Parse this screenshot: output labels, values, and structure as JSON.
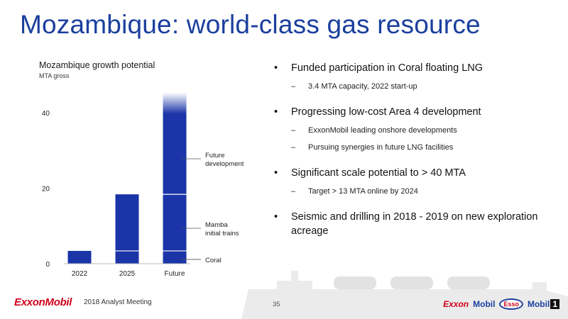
{
  "slide": {
    "title": "Mozambique: world-class gas resource",
    "page_number": "35"
  },
  "footer": {
    "logo_text": "ExxonMobil",
    "meeting": "2018 Analyst Meeting",
    "brands": [
      "Exxon",
      "Mobil",
      "Esso",
      "Mobil",
      "1"
    ]
  },
  "bullets": [
    {
      "text": "Funded participation in Coral floating LNG",
      "subs": [
        "3.4 MTA capacity, 2022 start-up"
      ]
    },
    {
      "text": "Progressing low-cost Area 4 development",
      "subs": [
        "ExxonMobil leading onshore developments",
        "Pursuing synergies in future LNG facilities"
      ]
    },
    {
      "text": "Significant scale potential to > 40 MTA",
      "subs": [
        "Target > 13 MTA online by 2024"
      ]
    },
    {
      "text": "Seismic and drilling in 2018 - 2019 on new exploration acreage",
      "subs": []
    }
  ],
  "colors": {
    "bar": "#1b35a8",
    "title": "#1b3f9e",
    "ship": "#e8e8e8"
  },
  "chart_data": {
    "type": "bar",
    "stacked": true,
    "title": "Mozambique growth potential",
    "subtitle": "MTA gross",
    "categories": [
      "2022",
      "2025",
      "Future"
    ],
    "series": [
      {
        "name": "Coral",
        "values": [
          3.4,
          3.4,
          3.4
        ]
      },
      {
        "name": "Mamba initial trains",
        "values": [
          0,
          15,
          15
        ]
      },
      {
        "name": "Future development",
        "values": [
          0,
          0,
          27
        ]
      }
    ],
    "legend_labels": [
      {
        "key": "coral",
        "lines": [
          "Coral"
        ]
      },
      {
        "key": "mamba",
        "lines": [
          "Mamba",
          "initial trains"
        ]
      },
      {
        "key": "future",
        "lines": [
          "Future",
          "development"
        ]
      }
    ],
    "yticks": [
      0,
      20,
      40
    ],
    "ylim": [
      0,
      47
    ],
    "legend_position": "right"
  }
}
